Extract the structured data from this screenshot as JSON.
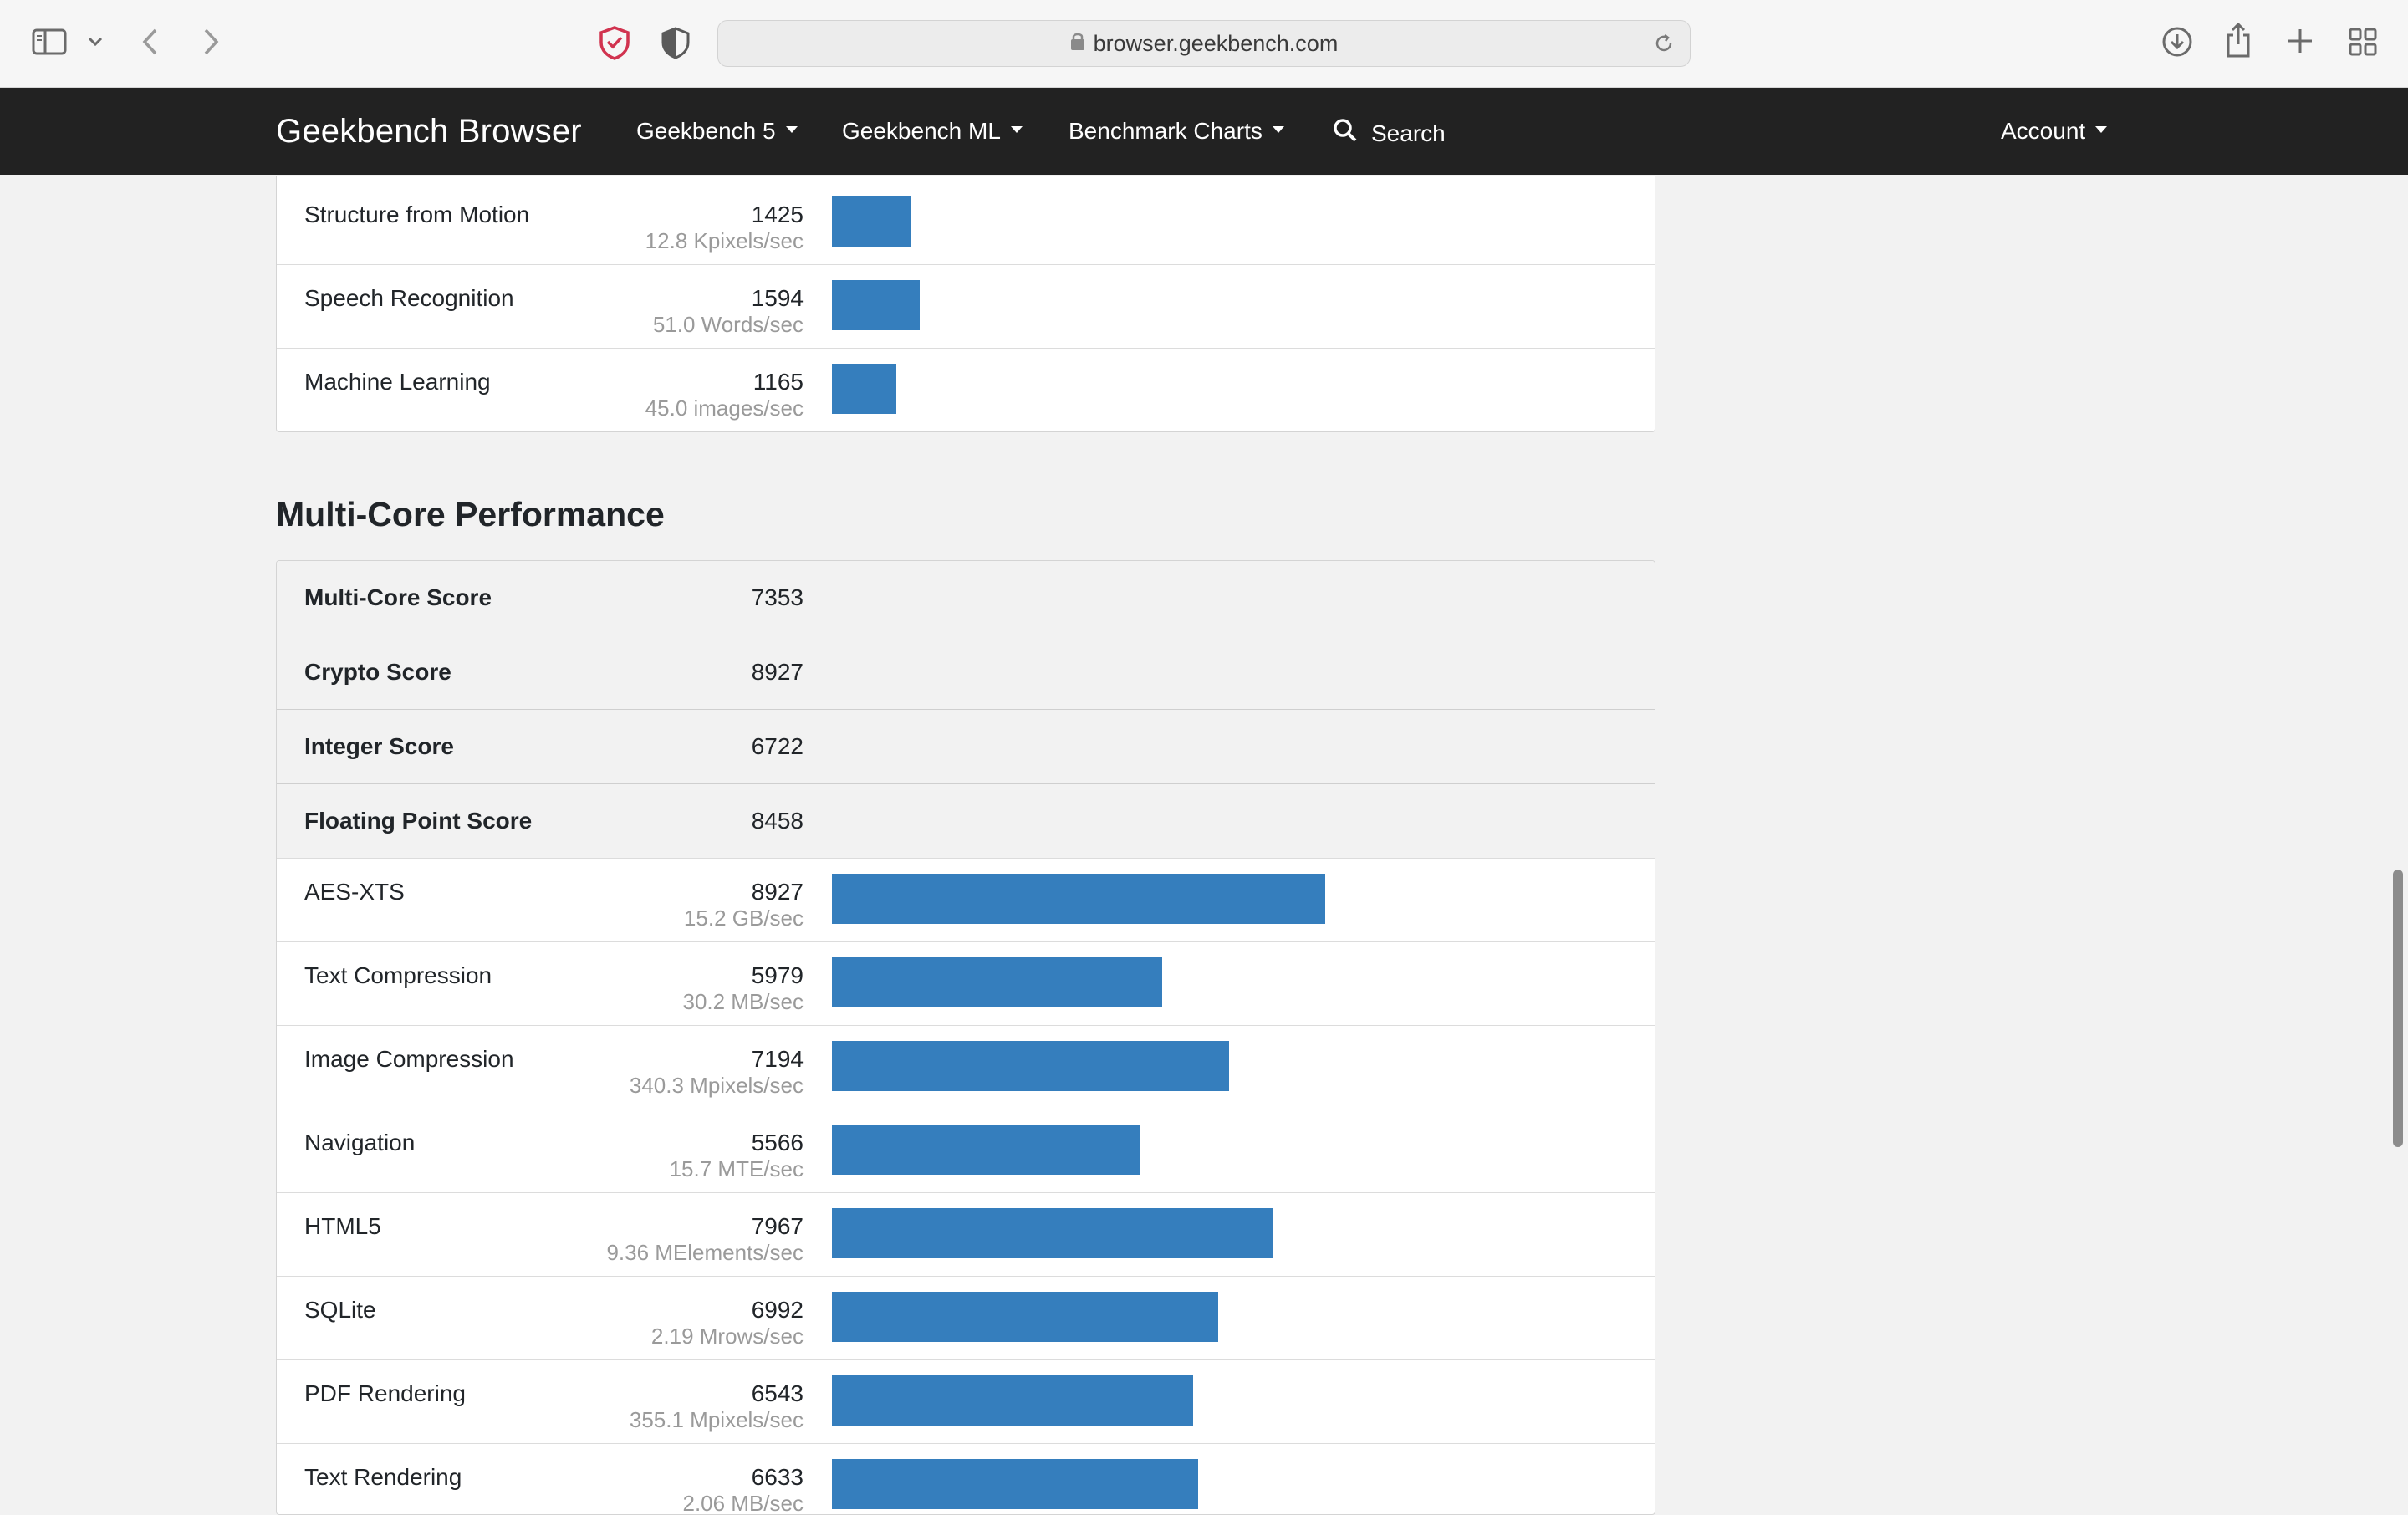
{
  "browser": {
    "url": "browser.geekbench.com"
  },
  "nav": {
    "brand": "Geekbench Browser",
    "items": [
      {
        "label": "Geekbench 5"
      },
      {
        "label": "Geekbench ML"
      },
      {
        "label": "Benchmark Charts"
      }
    ],
    "search_label": "Search",
    "account_label": "Account"
  },
  "single_core_tail": {
    "rows": [
      {
        "name": "Structure from Motion",
        "score": 1425,
        "score_text": "1425",
        "desc": "12.8 Kpixels/sec"
      },
      {
        "name": "Speech Recognition",
        "score": 1594,
        "score_text": "1594",
        "desc": "51.0 Words/sec"
      },
      {
        "name": "Machine Learning",
        "score": 1165,
        "score_text": "1165",
        "desc": "45.0 images/sec"
      }
    ]
  },
  "multi_core": {
    "title": "Multi-Core Performance",
    "summary": [
      {
        "name": "Multi-Core Score",
        "score": "7353"
      },
      {
        "name": "Crypto Score",
        "score": "8927"
      },
      {
        "name": "Integer Score",
        "score": "6722"
      },
      {
        "name": "Floating Point Score",
        "score": "8458"
      }
    ],
    "rows": [
      {
        "name": "AES-XTS",
        "score": 8927,
        "score_text": "8927",
        "desc": "15.2 GB/sec"
      },
      {
        "name": "Text Compression",
        "score": 5979,
        "score_text": "5979",
        "desc": "30.2 MB/sec"
      },
      {
        "name": "Image Compression",
        "score": 7194,
        "score_text": "7194",
        "desc": "340.3 Mpixels/sec"
      },
      {
        "name": "Navigation",
        "score": 5566,
        "score_text": "5566",
        "desc": "15.7 MTE/sec"
      },
      {
        "name": "HTML5",
        "score": 7967,
        "score_text": "7967",
        "desc": "9.36 MElements/sec"
      },
      {
        "name": "SQLite",
        "score": 6992,
        "score_text": "6992",
        "desc": "2.19 Mrows/sec"
      },
      {
        "name": "PDF Rendering",
        "score": 6543,
        "score_text": "6543",
        "desc": "355.1 Mpixels/sec"
      },
      {
        "name": "Text Rendering",
        "score": 6633,
        "score_text": "6633",
        "desc": "2.06 MB/sec"
      }
    ]
  },
  "colors": {
    "bar": "#357ebd",
    "nav_bg": "#222222",
    "page_bg": "#f2f2f2"
  }
}
